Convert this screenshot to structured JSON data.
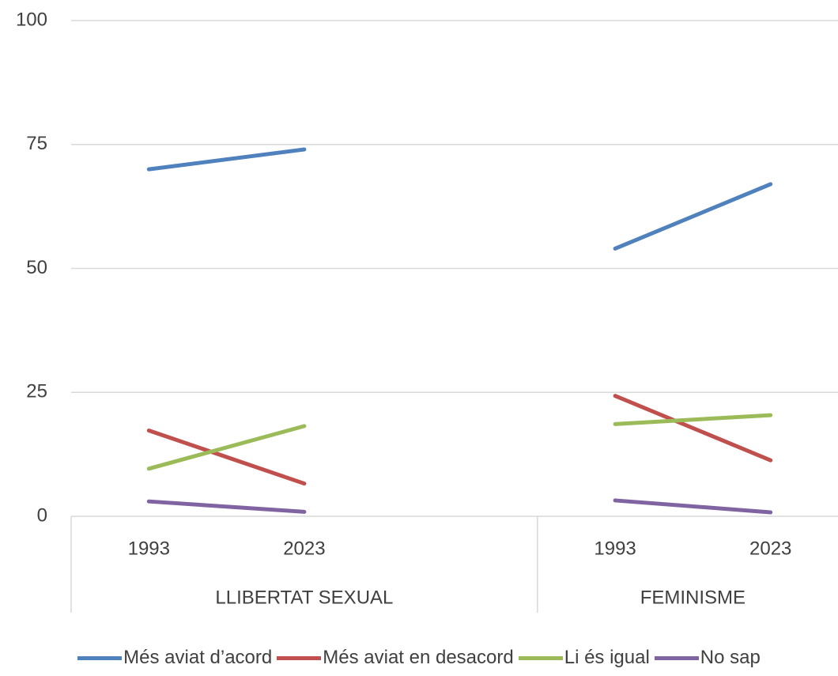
{
  "chart_data": {
    "type": "line",
    "categories": [
      "1993",
      "2023",
      null,
      "1993",
      "2023"
    ],
    "groups": [
      "LLIBERTAT SEXUAL",
      "LLIBERTAT SEXUAL",
      "LLIBERTAT SEXUAL",
      "FEMINISME",
      "FEMINISME"
    ],
    "series": [
      {
        "name": "Més aviat d’acord",
        "color": "#4f81bd",
        "values": [
          70,
          74,
          null,
          54,
          67
        ]
      },
      {
        "name": "Més aviat en desacord",
        "color": "#c0504d",
        "values": [
          17.3,
          6.6,
          null,
          24.3,
          11.3
        ]
      },
      {
        "name": "Li és igual",
        "color": "#9bbb59",
        "values": [
          9.6,
          18.2,
          null,
          18.6,
          20.4
        ]
      },
      {
        "name": "No sap",
        "color": "#8064a2",
        "values": [
          3.0,
          0.9,
          null,
          3.2,
          0.8
        ]
      }
    ],
    "ylim": [
      0,
      100
    ],
    "yticks": [
      0,
      25,
      50,
      75,
      100
    ],
    "grid": true,
    "legend": "bottom"
  }
}
